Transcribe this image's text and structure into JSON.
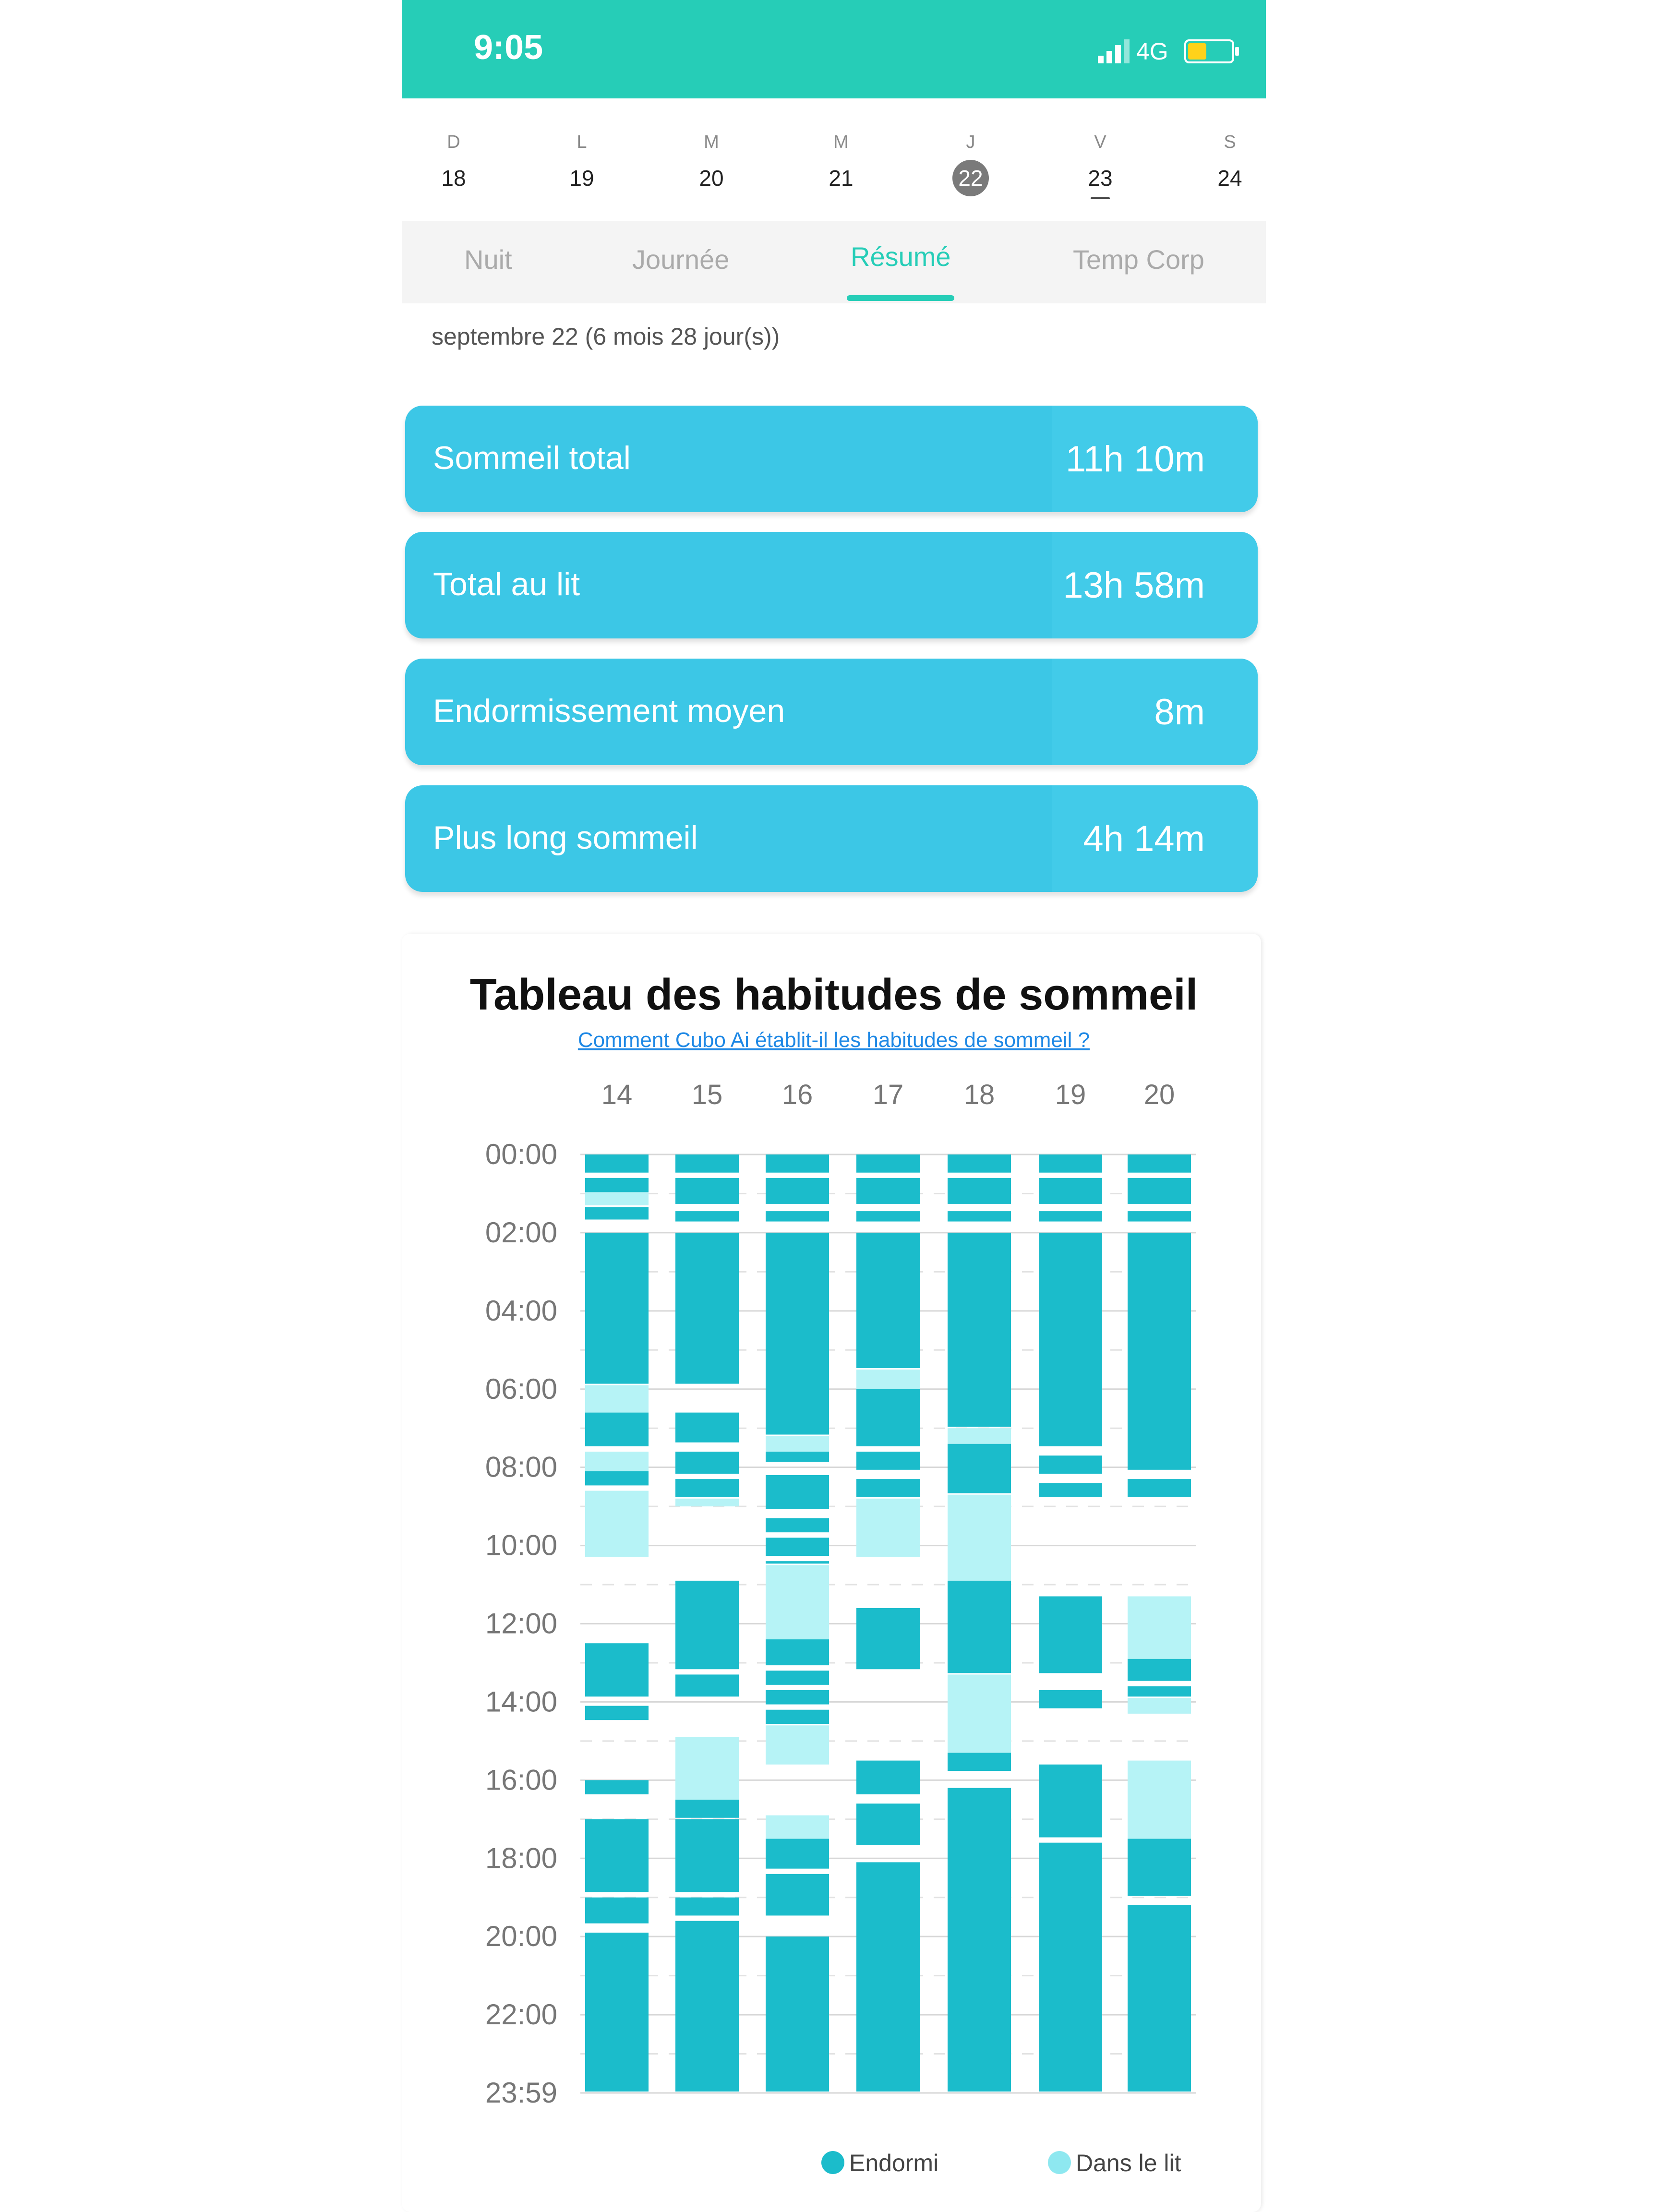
{
  "status_bar": {
    "time": "9:05",
    "network": "4G"
  },
  "week": [
    {
      "letter": "D",
      "day": "18"
    },
    {
      "letter": "L",
      "day": "19"
    },
    {
      "letter": "M",
      "day": "20"
    },
    {
      "letter": "M",
      "day": "21"
    },
    {
      "letter": "J",
      "day": "22",
      "selected": true
    },
    {
      "letter": "V",
      "day": "23",
      "today_marker": true
    },
    {
      "letter": "S",
      "day": "24"
    }
  ],
  "tabs": [
    {
      "label": "Nuit"
    },
    {
      "label": "Journée"
    },
    {
      "label": "Résumé",
      "active": true
    },
    {
      "label": "Temp Corp"
    }
  ],
  "date_line": "septembre 22 (6 mois 28 jour(s))",
  "summary": [
    {
      "label": "Sommeil total",
      "value": "11h 10m"
    },
    {
      "label": "Total au lit",
      "value": "13h 58m"
    },
    {
      "label": "Endormissement moyen",
      "value": "8m"
    },
    {
      "label": "Plus long sommeil",
      "value": "4h 14m"
    }
  ],
  "colors": {
    "accent": "#26cdb7",
    "card": "#3cc7e6",
    "asleep": "#1bbccb",
    "in_bed": "#b6f3f6"
  },
  "chart_data": {
    "type": "bar",
    "title": "Tableau des habitudes de sommeil",
    "link": "Comment Cubo Ai établit-il les habitudes de sommeil ?",
    "categories": [
      "14",
      "15",
      "16",
      "17",
      "18",
      "19",
      "20"
    ],
    "y_ticks": [
      "00:00",
      "02:00",
      "04:00",
      "06:00",
      "08:00",
      "10:00",
      "12:00",
      "14:00",
      "16:00",
      "18:00",
      "20:00",
      "22:00",
      "23:59"
    ],
    "ylim": [
      0,
      24
    ],
    "legend": [
      {
        "name": "Endormi",
        "color": "#1bbccb"
      },
      {
        "name": "Dans le lit",
        "color": "#b6f3f6"
      }
    ],
    "series": [
      {
        "day": "14",
        "asleep": [
          [
            0,
            0.5
          ],
          [
            0.6,
            1.0
          ],
          [
            1.35,
            1.7
          ],
          [
            2.0,
            5.9
          ],
          [
            6.6,
            7.5
          ],
          [
            8.1,
            8.5
          ],
          [
            12.5,
            13.9
          ],
          [
            14.1,
            14.5
          ],
          [
            16.0,
            16.4
          ],
          [
            17.0,
            18.9
          ],
          [
            19.0,
            19.7
          ],
          [
            19.9,
            24
          ]
        ],
        "in_bed": [
          [
            0.6,
            1.3
          ],
          [
            5.9,
            6.6
          ],
          [
            7.6,
            8.1
          ],
          [
            8.6,
            10.3
          ]
        ]
      },
      {
        "day": "15",
        "asleep": [
          [
            0,
            0.5
          ],
          [
            0.6,
            1.3
          ],
          [
            1.45,
            1.75
          ],
          [
            2.0,
            5.9
          ],
          [
            6.6,
            7.4
          ],
          [
            7.6,
            8.2
          ],
          [
            8.3,
            8.8
          ],
          [
            10.9,
            13.2
          ],
          [
            13.3,
            13.9
          ],
          [
            16.5,
            17.0
          ],
          [
            17.0,
            18.9
          ],
          [
            19.0,
            19.5
          ],
          [
            19.6,
            24
          ]
        ],
        "in_bed": [
          [
            8.8,
            9.0
          ],
          [
            14.9,
            16.5
          ],
          [
            17.0,
            17.3
          ]
        ]
      },
      {
        "day": "16",
        "asleep": [
          [
            0,
            0.5
          ],
          [
            0.6,
            1.3
          ],
          [
            1.45,
            1.75
          ],
          [
            2.0,
            7.2
          ],
          [
            7.6,
            7.9
          ],
          [
            8.2,
            9.1
          ],
          [
            9.3,
            9.7
          ],
          [
            9.8,
            10.3
          ],
          [
            10.4,
            10.5
          ],
          [
            12.4,
            13.1
          ],
          [
            13.2,
            13.6
          ],
          [
            13.7,
            14.1
          ],
          [
            14.2,
            14.6
          ],
          [
            17.5,
            18.3
          ],
          [
            18.4,
            19.5
          ],
          [
            20.0,
            24
          ]
        ],
        "in_bed": [
          [
            7.2,
            7.6
          ],
          [
            10.5,
            12.4
          ],
          [
            14.6,
            15.6
          ],
          [
            16.9,
            17.5
          ]
        ]
      },
      {
        "day": "17",
        "asleep": [
          [
            0,
            0.5
          ],
          [
            0.6,
            1.3
          ],
          [
            1.45,
            1.75
          ],
          [
            2.0,
            5.5
          ],
          [
            6.0,
            7.5
          ],
          [
            7.6,
            8.1
          ],
          [
            8.3,
            8.8
          ],
          [
            11.6,
            13.2
          ],
          [
            15.5,
            16.4
          ],
          [
            16.6,
            17.7
          ],
          [
            18.1,
            24
          ]
        ],
        "in_bed": [
          [
            5.5,
            6.0
          ],
          [
            8.8,
            10.3
          ]
        ]
      },
      {
        "day": "18",
        "asleep": [
          [
            0,
            0.5
          ],
          [
            0.6,
            1.3
          ],
          [
            1.45,
            1.75
          ],
          [
            2.0,
            7.0
          ],
          [
            7.4,
            8.7
          ],
          [
            10.9,
            13.3
          ],
          [
            15.3,
            15.8
          ],
          [
            16.2,
            24
          ]
        ],
        "in_bed": [
          [
            7.0,
            7.4
          ],
          [
            8.7,
            10.9
          ],
          [
            13.3,
            15.3
          ]
        ]
      },
      {
        "day": "19",
        "asleep": [
          [
            0,
            0.5
          ],
          [
            0.6,
            1.3
          ],
          [
            1.45,
            1.75
          ],
          [
            2.0,
            7.5
          ],
          [
            7.7,
            8.2
          ],
          [
            8.4,
            8.8
          ],
          [
            11.3,
            13.3
          ],
          [
            13.7,
            14.2
          ],
          [
            15.6,
            17.5
          ],
          [
            17.6,
            24
          ]
        ],
        "in_bed": []
      },
      {
        "day": "20",
        "asleep": [
          [
            0,
            0.5
          ],
          [
            0.6,
            1.3
          ],
          [
            1.45,
            1.75
          ],
          [
            2.0,
            8.1
          ],
          [
            8.3,
            8.8
          ],
          [
            12.9,
            13.5
          ],
          [
            13.6,
            13.9
          ],
          [
            17.5,
            19.0
          ],
          [
            19.2,
            24
          ]
        ],
        "in_bed": [
          [
            11.3,
            12.9
          ],
          [
            13.9,
            14.3
          ],
          [
            15.5,
            17.5
          ]
        ]
      }
    ]
  }
}
